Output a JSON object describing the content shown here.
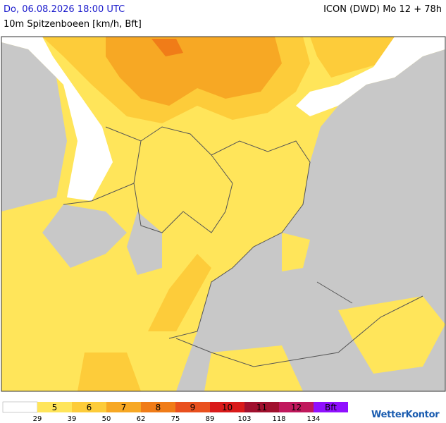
{
  "header": {
    "datetime": "Do, 06.08.2026 18:00 UTC",
    "model": "ICON (DWD) Mo 12 + 78h",
    "subtitle": "10m Spitzenboeen [km/h, Bft]"
  },
  "legend": {
    "classes": [
      {
        "label": "5",
        "color": "#ffe55a"
      },
      {
        "label": "6",
        "color": "#fdcc3a"
      },
      {
        "label": "7",
        "color": "#f7a824"
      },
      {
        "label": "8",
        "color": "#f07c18"
      },
      {
        "label": "9",
        "color": "#e9501e"
      },
      {
        "label": "10",
        "color": "#d91a1a"
      },
      {
        "label": "11",
        "color": "#a0102e"
      },
      {
        "label": "12",
        "color": "#c0185c"
      },
      {
        "label": "Bft",
        "color": "#9010ff"
      }
    ],
    "thresholds": [
      29,
      39,
      50,
      62,
      75,
      89,
      103,
      118,
      134
    ]
  },
  "logo": "WetterKontor"
}
